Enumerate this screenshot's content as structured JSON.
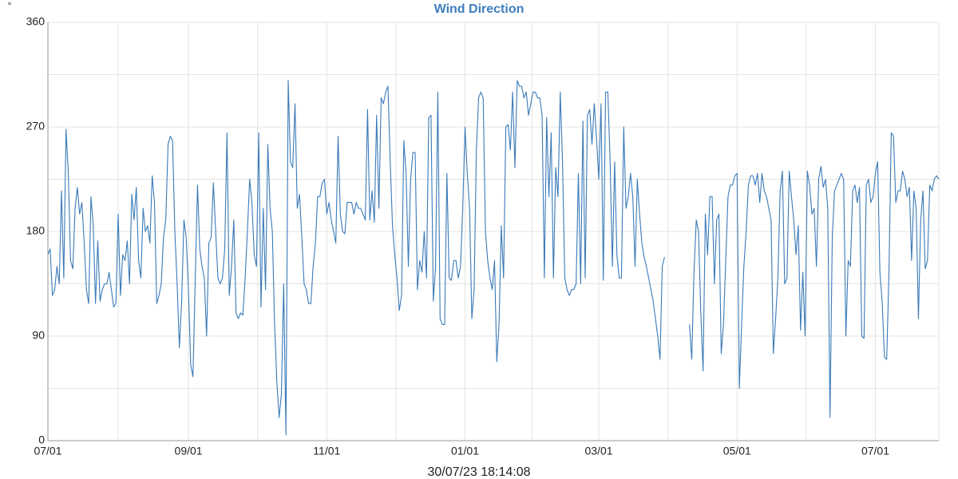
{
  "chart_data": {
    "type": "line",
    "title": "Wind Direction",
    "y_label": "°",
    "footer": "30/07/23 18:14:08",
    "categories": [
      "07/01",
      null,
      null,
      null,
      null,
      null,
      null,
      null,
      null,
      null,
      null,
      null,
      null,
      null,
      null,
      null,
      null,
      null,
      null,
      null,
      null,
      null,
      null,
      null,
      null,
      null,
      null,
      null,
      null,
      null,
      null,
      null,
      null,
      null,
      null,
      null,
      null,
      null,
      null,
      null,
      null,
      null,
      null,
      null,
      null,
      null,
      null,
      null,
      null,
      null,
      null,
      null,
      null,
      null,
      null,
      null,
      null,
      null,
      null,
      null,
      null,
      null,
      "09/01",
      null,
      null,
      null,
      null,
      null,
      null,
      null,
      null,
      null,
      null,
      null,
      null,
      null,
      null,
      null,
      null,
      null,
      null,
      null,
      null,
      null,
      null,
      null,
      null,
      null,
      null,
      null,
      null,
      null,
      null,
      null,
      null,
      null,
      null,
      null,
      null,
      null,
      null,
      null,
      null,
      null,
      null,
      null,
      null,
      null,
      null,
      null,
      null,
      null,
      null,
      null,
      null,
      null,
      null,
      null,
      null,
      null,
      null,
      null,
      null,
      "11/01",
      null,
      null,
      null,
      null,
      null,
      null,
      null,
      null,
      null,
      null,
      null,
      null,
      null,
      null,
      null,
      null,
      null,
      null,
      null,
      null,
      null,
      null,
      null,
      null,
      null,
      null,
      null,
      null,
      null,
      null,
      null,
      null,
      null,
      null,
      null,
      null,
      null,
      null,
      null,
      null,
      null,
      null,
      null,
      null,
      null,
      null,
      null,
      null,
      null,
      null,
      null,
      null,
      null,
      null,
      null,
      null,
      null,
      null,
      null,
      null,
      "01/01",
      null,
      null,
      null,
      null,
      null,
      null,
      null,
      null,
      null,
      null,
      null,
      null,
      null,
      null,
      null,
      null,
      null,
      null,
      null,
      null,
      null,
      null,
      null,
      null,
      null,
      null,
      null,
      null,
      null,
      null,
      null,
      null,
      null,
      null,
      null,
      null,
      null,
      null,
      null,
      null,
      null,
      null,
      null,
      null,
      null,
      null,
      null,
      null,
      null,
      null,
      null,
      null,
      null,
      null,
      null,
      null,
      null,
      null,
      "03/01",
      null,
      null,
      null,
      null,
      null,
      null,
      null,
      null,
      null,
      null,
      null,
      null,
      null,
      null,
      null,
      null,
      null,
      null,
      null,
      null,
      null,
      null,
      null,
      null,
      null,
      null,
      null,
      null,
      null,
      null,
      null,
      null,
      null,
      null,
      null,
      null,
      null,
      null,
      null,
      null,
      null,
      null,
      null,
      null,
      null,
      null,
      null,
      null,
      null,
      null,
      null,
      null,
      null,
      null,
      null,
      null,
      null,
      null,
      null,
      null,
      "05/01",
      null,
      null,
      null,
      null,
      null,
      null,
      null,
      null,
      null,
      null,
      null,
      null,
      null,
      null,
      null,
      null,
      null,
      null,
      null,
      null,
      null,
      null,
      null,
      null,
      null,
      null,
      null,
      null,
      null,
      null,
      null,
      null,
      null,
      null,
      null,
      null,
      null,
      null,
      null,
      null,
      null,
      null,
      null,
      null,
      null,
      null,
      null,
      null,
      null,
      null,
      null,
      null,
      null,
      null,
      null,
      null,
      null,
      null,
      null,
      null,
      "07/01",
      null,
      null,
      null,
      null,
      null,
      null,
      null,
      null,
      null,
      null,
      null,
      null,
      null,
      null,
      null,
      null,
      null,
      null,
      null,
      null,
      null,
      null,
      null,
      null,
      null,
      null,
      null,
      null
    ],
    "series": [
      {
        "name": "Wind Direction",
        "color": "#3a7ab8",
        "values": [
          160,
          165,
          125,
          130,
          150,
          135,
          215,
          140,
          268,
          230,
          155,
          148,
          200,
          218,
          195,
          205,
          170,
          130,
          118,
          210,
          185,
          118,
          172,
          120,
          130,
          135,
          135,
          145,
          130,
          115,
          118,
          195,
          125,
          160,
          155,
          172,
          135,
          212,
          190,
          218,
          155,
          140,
          200,
          180,
          185,
          170,
          228,
          205,
          118,
          125,
          135,
          175,
          190,
          255,
          262,
          258,
          180,
          135,
          80,
          120,
          190,
          175,
          130,
          65,
          55,
          140,
          220,
          165,
          150,
          140,
          90,
          170,
          175,
          222,
          180,
          140,
          135,
          140,
          165,
          265,
          125,
          150,
          190,
          110,
          105,
          110,
          108,
          140,
          180,
          225,
          205,
          160,
          150,
          265,
          115,
          200,
          130,
          255,
          200,
          180,
          100,
          50,
          20,
          40,
          135,
          5,
          310,
          240,
          235,
          290,
          200,
          212,
          175,
          135,
          130,
          118,
          118,
          150,
          170,
          210,
          210,
          222,
          225,
          195,
          205,
          190,
          180,
          170,
          262,
          195,
          180,
          178,
          205,
          205,
          205,
          195,
          205,
          200,
          200,
          195,
          190,
          285,
          190,
          215,
          188,
          280,
          200,
          295,
          290,
          300,
          305,
          240,
          185,
          160,
          140,
          112,
          125,
          258,
          230,
          150,
          225,
          248,
          248,
          130,
          155,
          145,
          180,
          140,
          278,
          280,
          120,
          150,
          300,
          105,
          100,
          100,
          230,
          140,
          138,
          155,
          155,
          140,
          150,
          200,
          270,
          230,
          200,
          105,
          130,
          250,
          295,
          300,
          295,
          180,
          155,
          140,
          130,
          155,
          68,
          100,
          185,
          140,
          270,
          272,
          250,
          300,
          235,
          310,
          305,
          305,
          295,
          300,
          280,
          290,
          300,
          300,
          295,
          295,
          280,
          140,
          278,
          210,
          265,
          140,
          235,
          210,
          300,
          240,
          140,
          130,
          125,
          130,
          130,
          135,
          230,
          135,
          275,
          140,
          280,
          285,
          255,
          290,
          260,
          225,
          290,
          138,
          300,
          300,
          240,
          150,
          240,
          160,
          140,
          140,
          270,
          200,
          210,
          230,
          210,
          150,
          225,
          195,
          170,
          158,
          150,
          140,
          130,
          120,
          105,
          90,
          70,
          150,
          158,
          null,
          null,
          null,
          null,
          null,
          null,
          null,
          null,
          null,
          null,
          100,
          70,
          145,
          190,
          180,
          110,
          60,
          195,
          160,
          210,
          210,
          135,
          190,
          195,
          75,
          100,
          155,
          210,
          220,
          220,
          228,
          230,
          45,
          100,
          150,
          180,
          220,
          228,
          228,
          220,
          230,
          205,
          230,
          215,
          210,
          200,
          190,
          75,
          105,
          140,
          215,
          232,
          135,
          140,
          232,
          210,
          190,
          160,
          185,
          95,
          145,
          90,
          232,
          220,
          195,
          200,
          150,
          225,
          236,
          218,
          225,
          200,
          20,
          175,
          215,
          220,
          225,
          230,
          225,
          90,
          155,
          150,
          215,
          220,
          205,
          218,
          90,
          88,
          220,
          225,
          205,
          210,
          230,
          240,
          145,
          120,
          72,
          70,
          145,
          265,
          262,
          205,
          215,
          215,
          232,
          225,
          210,
          218,
          155,
          215,
          200,
          105,
          190,
          215,
          148,
          155,
          220,
          215,
          225,
          228,
          225
        ]
      }
    ],
    "ylim": [
      0,
      360
    ],
    "yticks": [
      0,
      90,
      180,
      270,
      360
    ],
    "grid": true
  }
}
